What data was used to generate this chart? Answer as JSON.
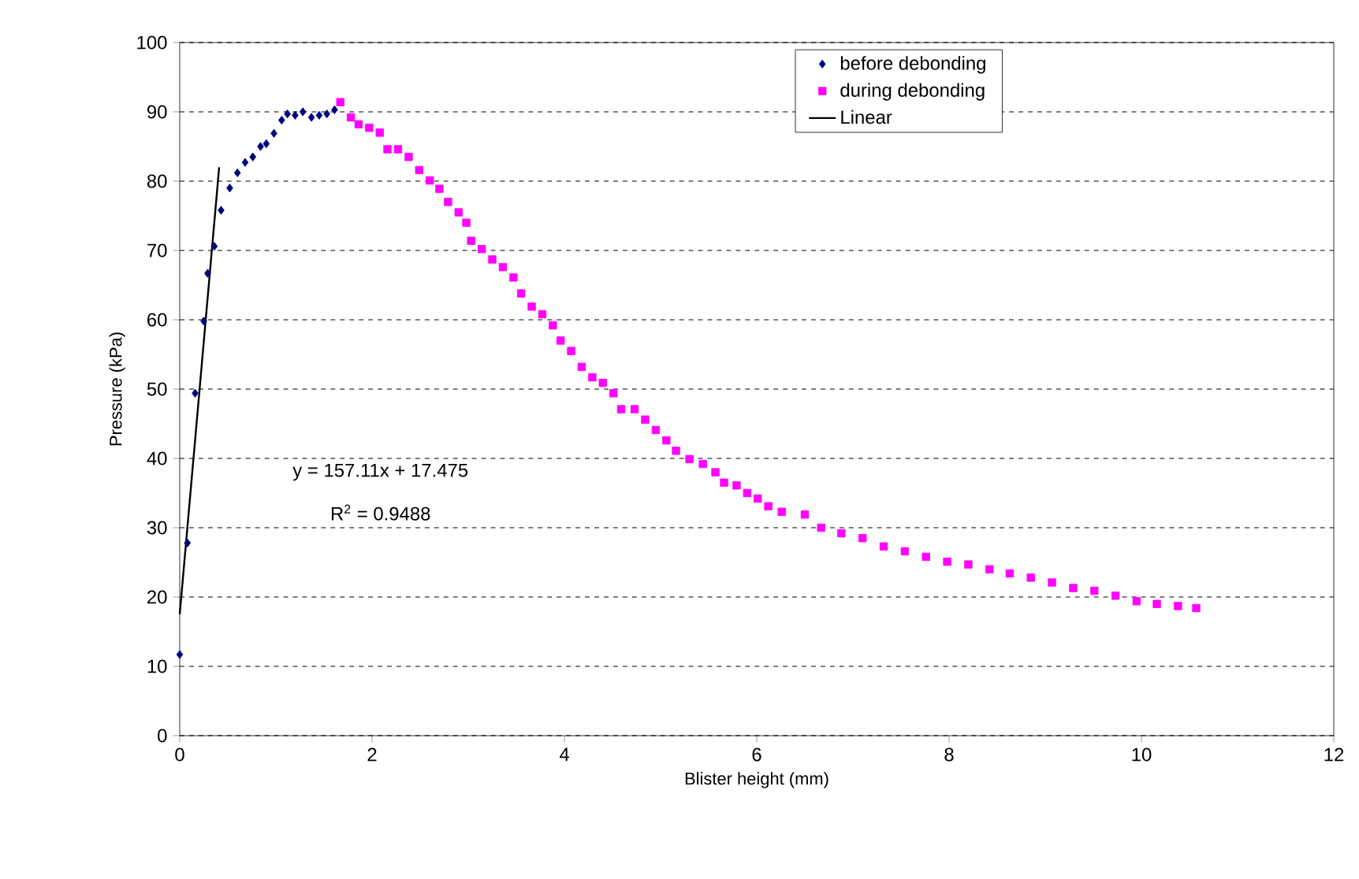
{
  "chart_data": {
    "type": "scatter",
    "xlabel": "Blister height (mm)",
    "ylabel": "Pressure (kPa)",
    "xlim": [
      0,
      12
    ],
    "xticks": [
      0,
      2,
      4,
      6,
      8,
      10,
      12
    ],
    "ylim": [
      0,
      100
    ],
    "yticks": [
      0,
      10,
      20,
      30,
      40,
      50,
      60,
      70,
      80,
      90,
      100
    ],
    "grid": "y",
    "legend": "top right",
    "annotations": [
      "y = 157.11x + 17.475",
      "R$^{2}$ = 0.9488"
    ],
    "series": [
      {
        "name": "before debonding",
        "marker": "diamond",
        "color": "#000080",
        "x": [
          0,
          0.08,
          0.16,
          0.25,
          0.29,
          0.36,
          0.43,
          0.52,
          0.6,
          0.68,
          0.76,
          0.84,
          0.9,
          0.98,
          1.06,
          1.12,
          1.2,
          1.28,
          1.37,
          1.45,
          1.53,
          1.61
        ],
        "values": [
          11.7,
          27.8,
          49.4,
          59.8,
          66.7,
          70.6,
          75.8,
          79,
          81.2,
          82.7,
          83.5,
          85,
          85.4,
          86.9,
          88.8,
          89.7,
          89.5,
          90,
          89.2,
          89.5,
          89.7,
          90.3
        ]
      },
      {
        "name": "during debonding",
        "marker": "square",
        "color": "#ff00ff",
        "x": [
          1.67,
          1.78,
          1.86,
          1.97,
          2.08,
          2.16,
          2.27,
          2.38,
          2.49,
          2.6,
          2.7,
          2.79,
          2.9,
          2.98,
          3.03,
          3.14,
          3.25,
          3.36,
          3.47,
          3.55,
          3.66,
          3.77,
          3.88,
          3.96,
          4.07,
          4.18,
          4.29,
          4.4,
          4.51,
          4.59,
          4.73,
          4.84,
          4.95,
          5.06,
          5.16,
          5.3,
          5.44,
          5.57,
          5.66,
          5.79,
          5.9,
          6.01,
          6.12,
          6.26,
          6.5,
          6.67,
          6.88,
          7.1,
          7.32,
          7.54,
          7.76,
          7.98,
          8.2,
          8.42,
          8.63,
          8.85,
          9.07,
          9.29,
          9.51,
          9.73,
          9.95,
          10.16,
          10.38,
          10.57
        ],
        "values": [
          91.4,
          89.2,
          88.2,
          87.7,
          87,
          84.6,
          84.6,
          83.5,
          81.6,
          80.1,
          78.9,
          77,
          75.5,
          74,
          71.4,
          70.2,
          68.7,
          67.6,
          66.1,
          63.8,
          61.9,
          60.8,
          59.2,
          57,
          55.5,
          53.2,
          51.7,
          50.9,
          49.4,
          47.1,
          47.1,
          45.6,
          44.1,
          42.6,
          41.1,
          39.9,
          39.2,
          38,
          36.5,
          36.1,
          35,
          34.2,
          33.1,
          32.3,
          31.9,
          30,
          29.2,
          28.5,
          27.3,
          26.6,
          25.8,
          25.1,
          24.7,
          24,
          23.4,
          22.8,
          22.1,
          21.3,
          20.9,
          20.2,
          19.4,
          19,
          18.7,
          18.4
        ]
      },
      {
        "name": "Linear",
        "type": "line",
        "marker": "none",
        "color": "#000000",
        "x": [
          0,
          0.41
        ],
        "values": [
          17.5,
          82
        ]
      }
    ]
  }
}
